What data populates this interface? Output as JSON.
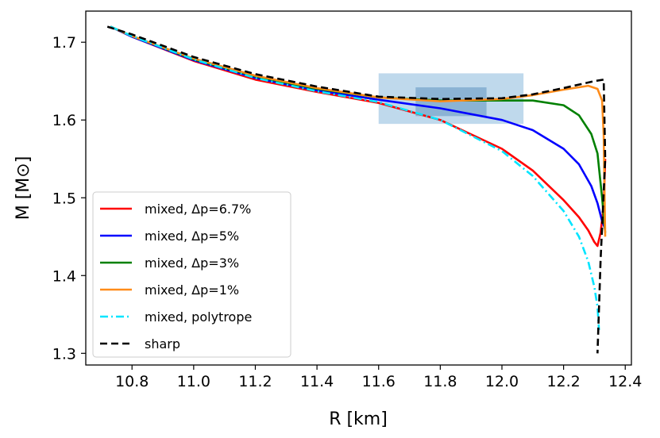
{
  "chart_data": {
    "type": "line",
    "xlabel": "R [km]",
    "ylabel": "M [M⊙]",
    "xlim": [
      10.65,
      12.42
    ],
    "ylim": [
      1.285,
      1.74
    ],
    "xticks": [
      "10.8",
      "11.0",
      "11.2",
      "11.4",
      "11.6",
      "11.8",
      "12.0",
      "12.2",
      "12.4"
    ],
    "yticks": [
      "1.3",
      "1.4",
      "1.5",
      "1.6",
      "1.7"
    ],
    "grid": false,
    "legend_position": "lower-left",
    "bands": [
      {
        "x": [
          11.6,
          12.07
        ],
        "y": [
          1.595,
          1.66
        ],
        "color": "#a9cce6",
        "alpha": 0.75
      },
      {
        "x": [
          11.72,
          11.95
        ],
        "y": [
          1.605,
          1.642
        ],
        "color": "#7aa6cc",
        "alpha": 0.75
      }
    ],
    "series": [
      {
        "name": "mixed, Δp=6.7%",
        "color": "#ff0000",
        "dash": "solid",
        "x": [
          10.73,
          10.8,
          11.0,
          11.2,
          11.4,
          11.6,
          11.8,
          12.0,
          12.1,
          12.2,
          12.25,
          12.28,
          12.3,
          12.31,
          12.32,
          12.33,
          12.335
        ],
        "y": [
          1.72,
          1.707,
          1.676,
          1.652,
          1.636,
          1.622,
          1.6,
          1.563,
          1.535,
          1.497,
          1.475,
          1.458,
          1.443,
          1.438,
          1.455,
          1.49,
          1.55
        ]
      },
      {
        "name": "mixed, Δp=5%",
        "color": "#0000ff",
        "dash": "solid",
        "x": [
          10.73,
          10.8,
          11.0,
          11.2,
          11.4,
          11.6,
          11.8,
          12.0,
          12.1,
          12.2,
          12.25,
          12.29,
          12.31,
          12.325,
          12.335
        ],
        "y": [
          1.72,
          1.707,
          1.677,
          1.654,
          1.638,
          1.626,
          1.615,
          1.6,
          1.587,
          1.563,
          1.543,
          1.515,
          1.493,
          1.47,
          1.46
        ]
      },
      {
        "name": "mixed, Δp=3%",
        "color": "#008000",
        "dash": "solid",
        "x": [
          10.73,
          10.8,
          11.0,
          11.2,
          11.4,
          11.6,
          11.8,
          12.0,
          12.1,
          12.2,
          12.25,
          12.29,
          12.31,
          12.325,
          12.335
        ],
        "y": [
          1.72,
          1.708,
          1.678,
          1.656,
          1.64,
          1.629,
          1.625,
          1.625,
          1.625,
          1.619,
          1.606,
          1.582,
          1.557,
          1.5,
          1.455
        ]
      },
      {
        "name": "mixed, Δp=1%",
        "color": "#ff8c1a",
        "dash": "solid",
        "x": [
          10.73,
          10.8,
          11.0,
          11.2,
          11.4,
          11.6,
          11.8,
          12.0,
          12.1,
          12.2,
          12.28,
          12.31,
          12.325,
          12.33,
          12.335
        ],
        "y": [
          1.72,
          1.708,
          1.679,
          1.657,
          1.641,
          1.629,
          1.624,
          1.627,
          1.632,
          1.639,
          1.644,
          1.64,
          1.625,
          1.58,
          1.45
        ]
      },
      {
        "name": "mixed, polytrope",
        "color": "#00e5ff",
        "dash": "dashdot",
        "x": [
          10.73,
          10.8,
          11.0,
          11.2,
          11.4,
          11.6,
          11.8,
          12.0,
          12.1,
          12.2,
          12.25,
          12.28,
          12.3,
          12.31,
          12.315
        ],
        "y": [
          1.72,
          1.708,
          1.678,
          1.654,
          1.637,
          1.623,
          1.6,
          1.56,
          1.528,
          1.483,
          1.45,
          1.418,
          1.385,
          1.36,
          1.33
        ]
      },
      {
        "name": "sharp",
        "color": "#000000",
        "dash": "dashed",
        "x": [
          10.72,
          10.8,
          11.0,
          11.2,
          11.4,
          11.6,
          11.8,
          12.0,
          12.1,
          12.2,
          12.3,
          12.33,
          12.335,
          12.32,
          12.31
        ],
        "y": [
          1.72,
          1.71,
          1.681,
          1.659,
          1.643,
          1.63,
          1.627,
          1.628,
          1.633,
          1.641,
          1.65,
          1.652,
          1.55,
          1.42,
          1.3
        ]
      }
    ]
  }
}
